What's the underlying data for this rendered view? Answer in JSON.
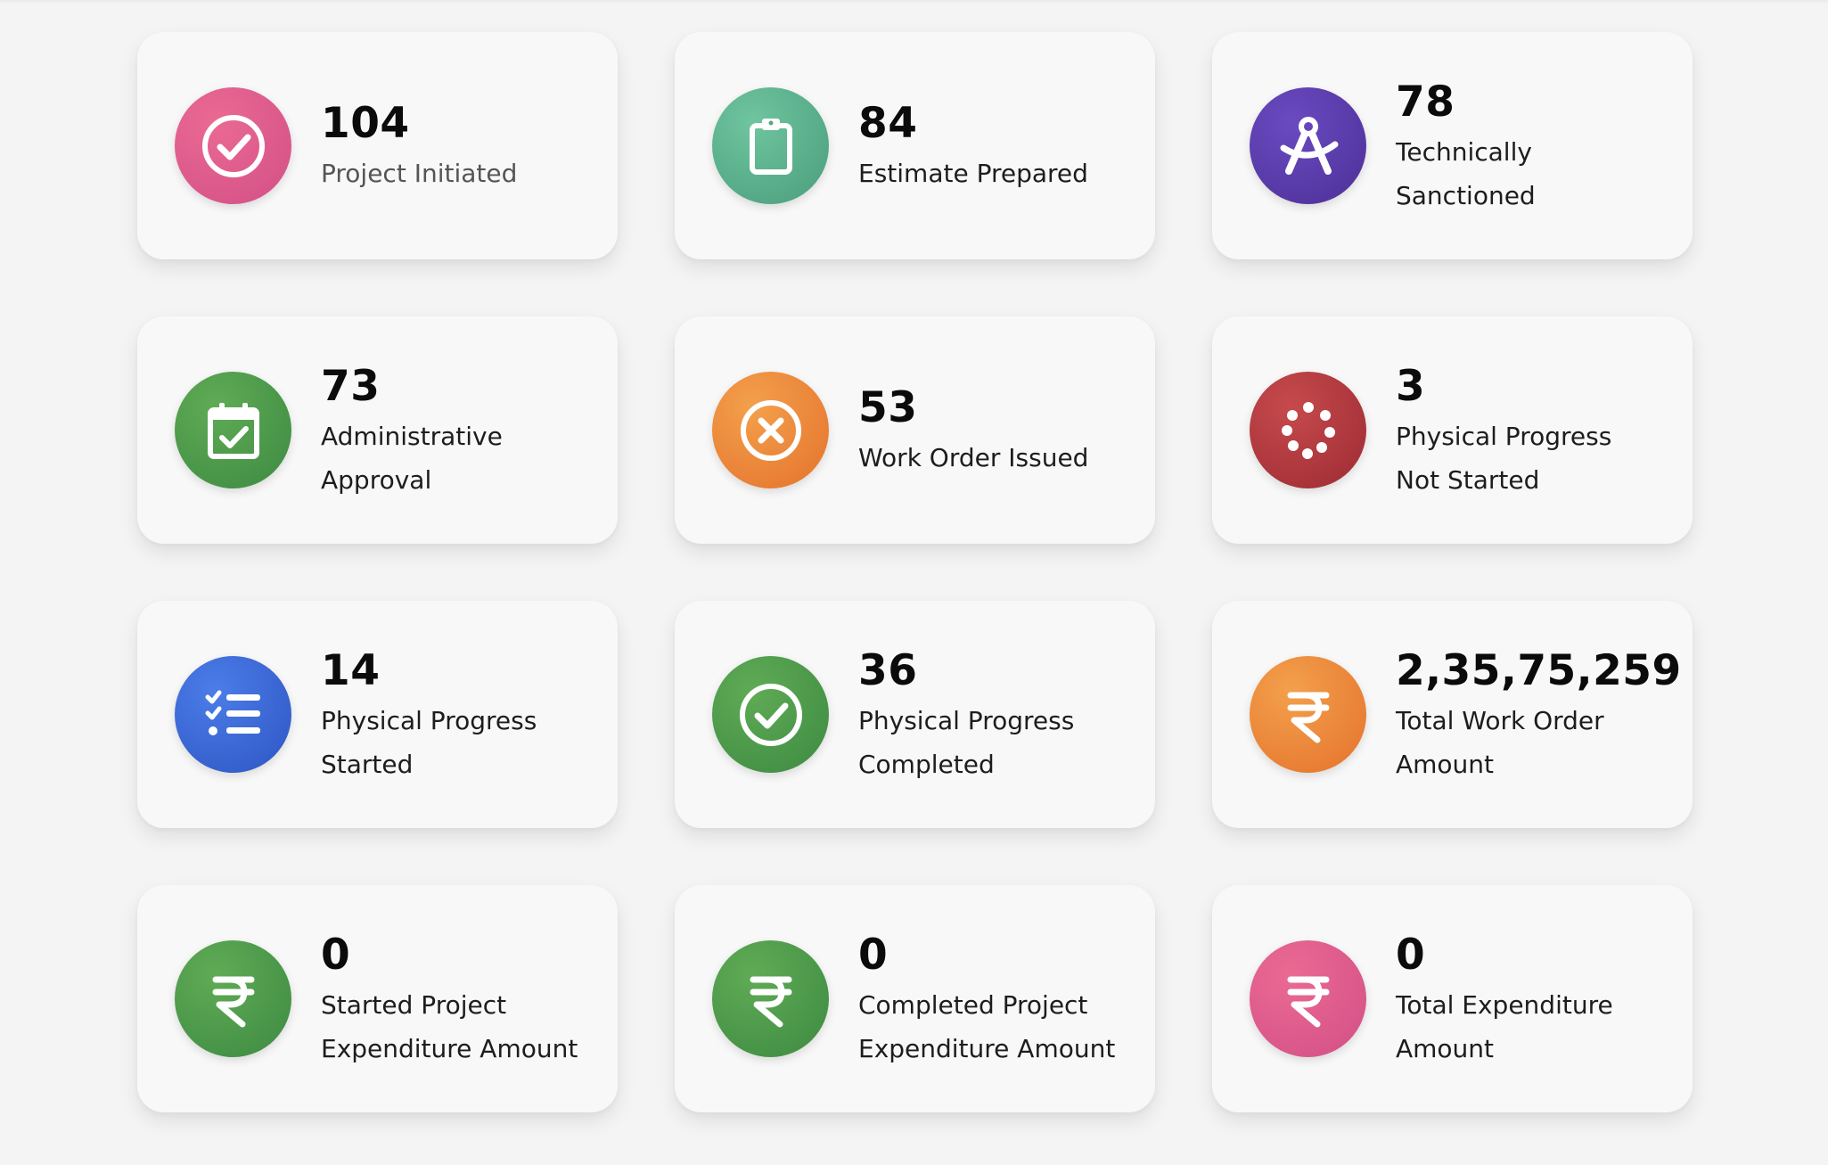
{
  "cards": [
    {
      "value": "104",
      "label1": "Project Initiated",
      "label2": "",
      "icon": "check-circle-icon",
      "color": "#d94f87"
    },
    {
      "value": "84",
      "label1": "Estimate Prepared",
      "label2": "",
      "icon": "clipboard-icon",
      "color": "#54a882"
    },
    {
      "value": "78",
      "label1": "Technically",
      "label2": "Sanctioned",
      "icon": "compass-icon",
      "color": "#563aa8"
    },
    {
      "value": "73",
      "label1": "Administrative",
      "label2": "Approval",
      "icon": "calendar-check-icon",
      "color": "#4a9348"
    },
    {
      "value": "53",
      "label1": "Work Order Issued",
      "label2": "",
      "icon": "x-circle-icon",
      "color": "#ec8538"
    },
    {
      "value": "3",
      "label1": "Physical Progress",
      "label2": "Not Started",
      "icon": "spinner-icon",
      "color": "#ae363d"
    },
    {
      "value": "14",
      "label1": "Physical Progress",
      "label2": "Started",
      "icon": "task-list-icon",
      "color": "#3563d2"
    },
    {
      "value": "36",
      "label1": "Physical Progress",
      "label2": "Completed",
      "icon": "check-circle-icon",
      "color": "#4a9348"
    },
    {
      "value": "2,35,75,259",
      "label1": "Total Work Order",
      "label2": "Amount",
      "icon": "rupee-icon",
      "color": "#ec8538"
    },
    {
      "value": "0",
      "label1": "Started Project",
      "label2": "Expenditure Amount",
      "icon": "rupee-icon",
      "color": "#4a9348"
    },
    {
      "value": "0",
      "label1": "Completed Project",
      "label2": "Expenditure Amount",
      "icon": "rupee-icon",
      "color": "#4a9348"
    },
    {
      "value": "0",
      "label1": "Total Expenditure",
      "label2": "Amount",
      "icon": "rupee-icon",
      "color": "#d94f87"
    }
  ]
}
